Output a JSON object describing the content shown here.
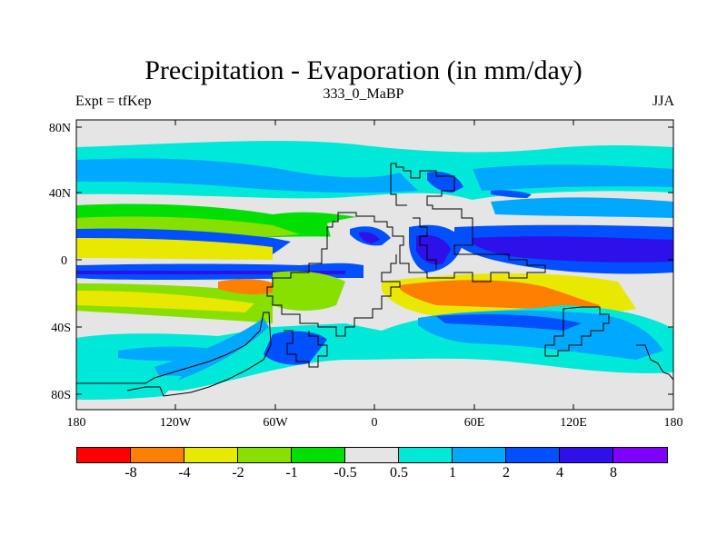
{
  "title": "Precipitation - Evaporation (in mm/day)",
  "subtitle_left": "Expt = tfKep",
  "subtitle_center": "333_0_MaBP",
  "subtitle_right": "JJA",
  "y_ticks": [
    "80N",
    "40N",
    "0",
    "40S",
    "80S"
  ],
  "x_ticks": [
    "180",
    "120W",
    "60W",
    "0",
    "60E",
    "120E",
    "180"
  ],
  "colors": {
    "background_field": "#e5e5e5",
    "outline": "#000000"
  },
  "legend": {
    "colors": [
      "#ff0000",
      "#ff8000",
      "#e8e800",
      "#88e000",
      "#00e000",
      "#e5e5e5",
      "#00e8d8",
      "#00a8ff",
      "#0050ff",
      "#2e10e8",
      "#8000ff"
    ],
    "labels": [
      "-8",
      "-4",
      "-2",
      "-1",
      "-0.5",
      "0.5",
      "1",
      "2",
      "4",
      "8"
    ]
  }
}
